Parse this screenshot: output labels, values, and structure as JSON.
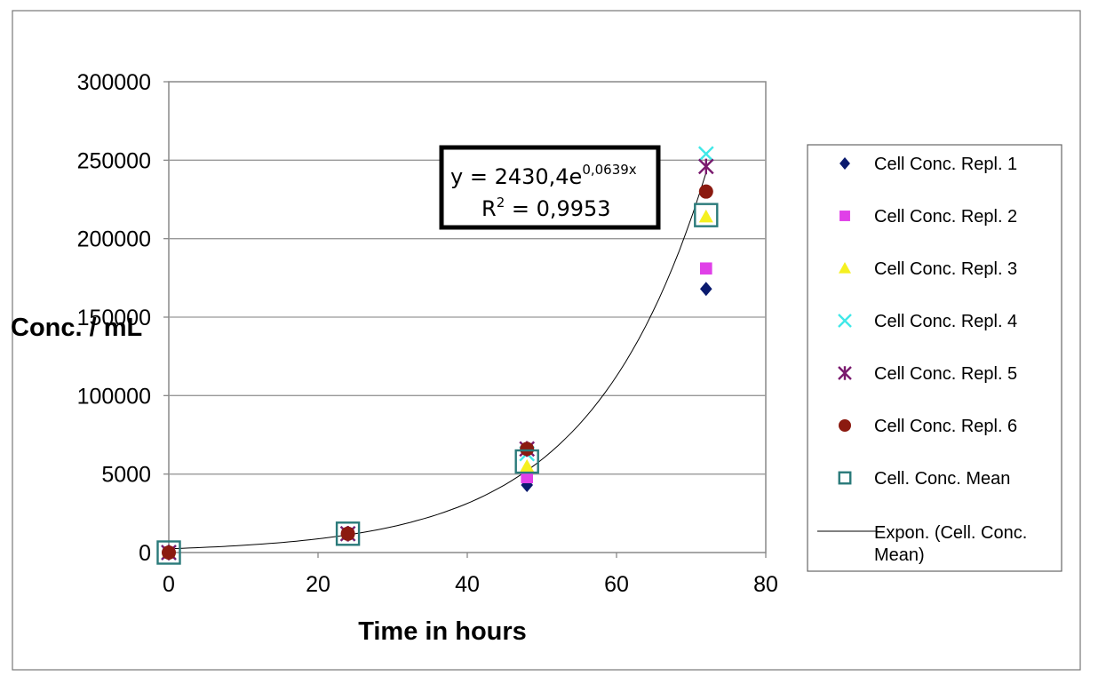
{
  "chart_data": {
    "type": "scatter",
    "xlabel": "Time in hours",
    "ylabel": "Conc. / mL",
    "xlim": [
      0,
      80
    ],
    "ylim": [
      0,
      300000
    ],
    "x_ticks": [
      "0",
      "20",
      "40",
      "60",
      "80"
    ],
    "y_ticks": [
      "0",
      "5000",
      "100000",
      "150000",
      "200000",
      "250000",
      "300000"
    ],
    "grid": "horizontal",
    "legend_position": "right",
    "series": [
      {
        "name": "Cell Conc. Repl. 1",
        "marker": "diamond",
        "color": "#0a1a6e",
        "points": [
          [
            0,
            0
          ],
          [
            24,
            12000
          ],
          [
            48,
            43000
          ],
          [
            72,
            168000
          ]
        ]
      },
      {
        "name": "Cell Conc. Repl. 2",
        "marker": "square",
        "color": "#e040e8",
        "points": [
          [
            0,
            0
          ],
          [
            24,
            12000
          ],
          [
            48,
            48000
          ],
          [
            72,
            181000
          ]
        ]
      },
      {
        "name": "Cell Conc. Repl. 3",
        "marker": "triangle",
        "color": "#f5f020",
        "points": [
          [
            0,
            0
          ],
          [
            24,
            12000
          ],
          [
            48,
            55000
          ],
          [
            72,
            214000
          ]
        ]
      },
      {
        "name": "Cell Conc. Repl. 4",
        "marker": "x",
        "color": "#40e8e8",
        "points": [
          [
            0,
            0
          ],
          [
            24,
            12000
          ],
          [
            48,
            63000
          ],
          [
            72,
            254000
          ]
        ]
      },
      {
        "name": "Cell Conc. Repl. 5",
        "marker": "star",
        "color": "#7a1a6e",
        "points": [
          [
            0,
            0
          ],
          [
            24,
            12000
          ],
          [
            48,
            66000
          ],
          [
            72,
            246000
          ]
        ]
      },
      {
        "name": "Cell Conc. Repl. 6",
        "marker": "circle",
        "color": "#8b1a10",
        "points": [
          [
            0,
            0
          ],
          [
            24,
            12000
          ],
          [
            48,
            66000
          ],
          [
            72,
            230000
          ]
        ]
      },
      {
        "name": "Cell. Conc. Mean",
        "marker": "open-square",
        "color": "#2a7a7a",
        "points": [
          [
            0,
            0
          ],
          [
            24,
            12000
          ],
          [
            48,
            58000
          ],
          [
            72,
            215000
          ]
        ]
      }
    ],
    "trendline": {
      "name": "Expon. (Cell. Conc. Mean)",
      "name_line1": "Expon. (Cell. Conc.",
      "name_line2": "Mean)",
      "a": 2430.4,
      "b": 0.0639,
      "x_range": [
        0,
        72
      ],
      "color": "#000000"
    },
    "annotation": {
      "eq_prefix": "y = 2430,4e",
      "eq_exp": "0,0639x",
      "r2_prefix": "R",
      "r2_exp": "2",
      "r2_suffix": " = 0,9953"
    }
  }
}
